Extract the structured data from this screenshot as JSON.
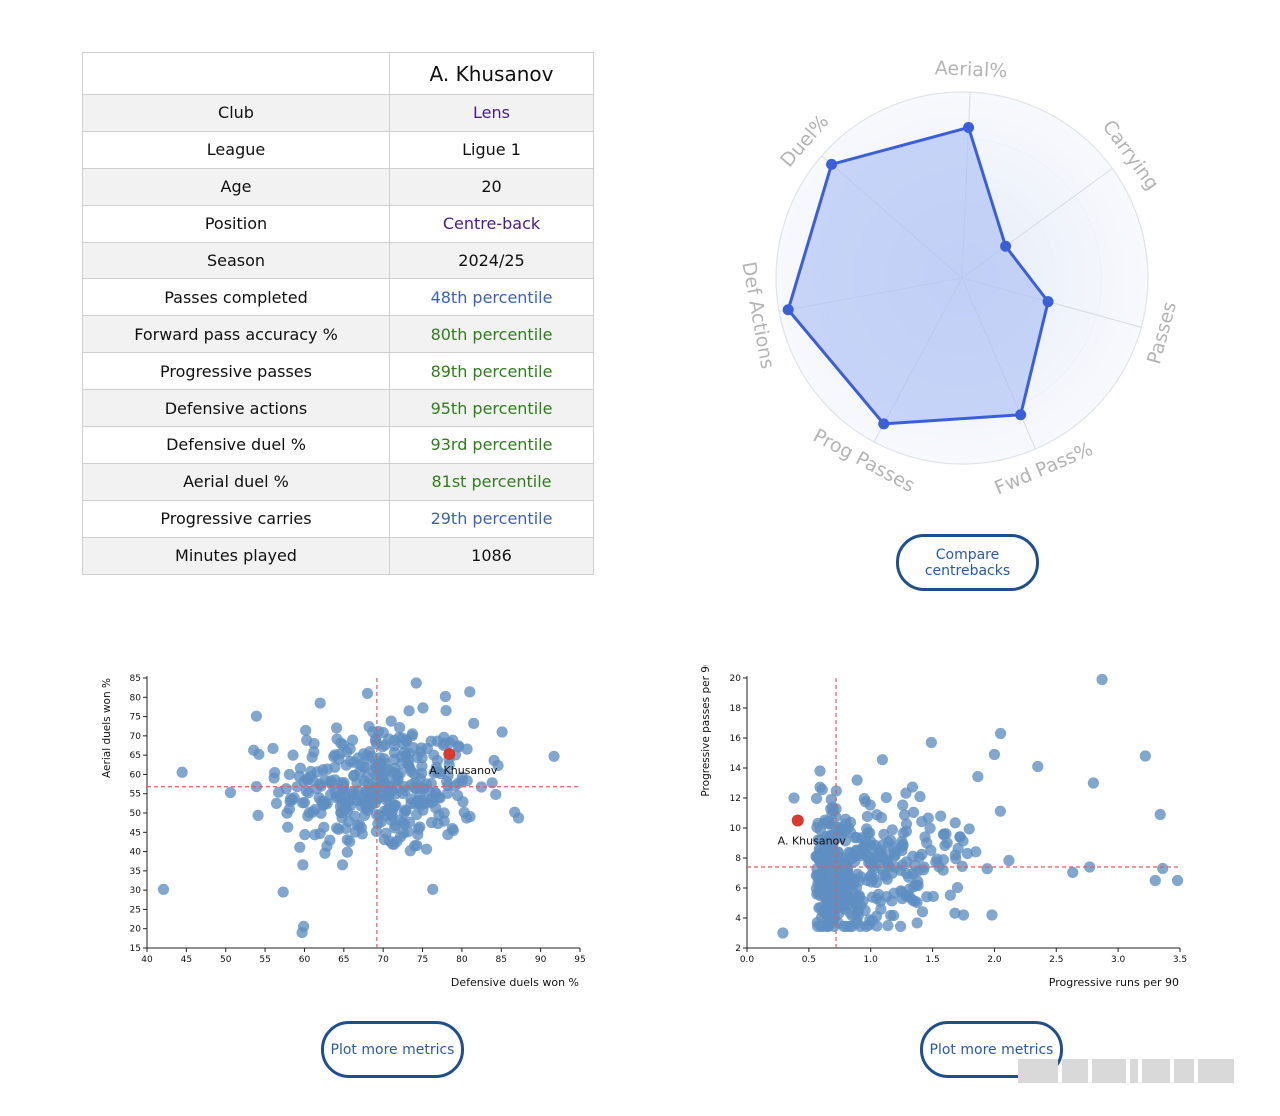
{
  "profile": {
    "player_name": "A. Khusanov",
    "rows": [
      {
        "label": "Club",
        "value": "Lens",
        "color": "purple"
      },
      {
        "label": "League",
        "value": "Ligue 1",
        "color": "black"
      },
      {
        "label": "Age",
        "value": "20",
        "color": "black"
      },
      {
        "label": "Position",
        "value": "Centre-back",
        "color": "purple"
      },
      {
        "label": "Season",
        "value": "2024/25",
        "color": "black"
      },
      {
        "label": "Passes completed",
        "value": "48th percentile",
        "color": "blue"
      },
      {
        "label": "Forward pass accuracy %",
        "value": "80th percentile",
        "color": "green"
      },
      {
        "label": "Progressive passes",
        "value": "89th percentile",
        "color": "green"
      },
      {
        "label": "Defensive actions",
        "value": "95th percentile",
        "color": "green"
      },
      {
        "label": "Defensive duel %",
        "value": "93rd percentile",
        "color": "green"
      },
      {
        "label": "Aerial duel %",
        "value": "81st percentile",
        "color": "green"
      },
      {
        "label": "Progressive carries",
        "value": "29th percentile",
        "color": "blue"
      },
      {
        "label": "Minutes played",
        "value": "1086",
        "color": "black"
      }
    ]
  },
  "buttons": {
    "compare_label_1": "Compare",
    "compare_label_2": "centrebacks",
    "plot_more_1": "Plot more metrics",
    "plot_more_2": "Plot more metrics"
  },
  "colors": {
    "radar_stroke": "#3b5fd9",
    "radar_fill": "#a9bdf5",
    "point": "#5f8ec1",
    "highlight": "#d9392f",
    "reference_line": "#d66060"
  },
  "chart_data": [
    {
      "type": "radar",
      "axes": [
        "Aerial%",
        "Carrying",
        "Passes",
        "Fwd Pass%",
        "Prog Passes",
        "Def Actions",
        "Duel%"
      ],
      "values": [
        81,
        29,
        48,
        80,
        89,
        95,
        93
      ],
      "range": [
        0,
        100
      ]
    },
    {
      "type": "scatter",
      "xlabel": "Defensive duels won %",
      "ylabel": "Aerial duels won %",
      "xlim": [
        40,
        95
      ],
      "ylim": [
        15,
        85
      ],
      "xticks": [
        40,
        45,
        50,
        55,
        60,
        65,
        70,
        75,
        80,
        85,
        90,
        95
      ],
      "yticks": [
        15,
        20,
        25,
        30,
        35,
        40,
        45,
        50,
        55,
        60,
        65,
        70,
        75,
        80,
        85
      ],
      "reference_x": 69.2,
      "reference_y": 56.8,
      "highlight": {
        "label": "A. Khusanov",
        "x": 78.4,
        "y": 65.3
      },
      "outliers": [
        [
          42.1,
          30.2
        ],
        [
          59.7,
          19.0
        ],
        [
          57.3,
          29.5
        ],
        [
          91.7,
          64.7
        ],
        [
          87.2,
          48.7
        ],
        [
          76.3,
          30.2
        ],
        [
          53.9,
          75.1
        ],
        [
          74.2,
          83.7
        ],
        [
          81.0,
          81.4
        ],
        [
          68.0,
          81.0
        ],
        [
          77.9,
          80.2
        ],
        [
          62.0,
          78.5
        ],
        [
          85.1,
          71.0
        ],
        [
          50.6,
          55.3
        ],
        [
          84.6,
          62.3
        ]
      ],
      "cluster": {
        "n": 380,
        "x_mean": 69.5,
        "x_sd": 6.2,
        "y_mean": 56.5,
        "y_sd": 8.6
      }
    },
    {
      "type": "scatter",
      "xlabel": "Progressive runs per 90",
      "ylabel": "Progressive passes per 90",
      "xlim": [
        0.0,
        3.5
      ],
      "ylim": [
        2,
        20
      ],
      "xticks": [
        "0.0",
        "0.5",
        "1.0",
        "1.5",
        "2.0",
        "2.5",
        "3.0",
        "3.5"
      ],
      "yticks": [
        2,
        4,
        6,
        8,
        10,
        12,
        14,
        16,
        18,
        20
      ],
      "reference_x": 0.72,
      "reference_y": 7.4,
      "highlight": {
        "label": "A. Khusanov",
        "x": 0.41,
        "y": 10.5
      },
      "outliers": [
        [
          2.87,
          19.9
        ],
        [
          2.05,
          16.3
        ],
        [
          1.49,
          15.7
        ],
        [
          2.0,
          14.9
        ],
        [
          3.22,
          14.8
        ],
        [
          2.35,
          14.1
        ],
        [
          2.8,
          13.0
        ],
        [
          3.34,
          10.9
        ],
        [
          3.48,
          6.5
        ],
        [
          3.3,
          6.5
        ],
        [
          3.36,
          7.3
        ],
        [
          2.77,
          7.4
        ],
        [
          1.98,
          4.2
        ],
        [
          1.75,
          4.2
        ],
        [
          0.59,
          13.8
        ],
        [
          0.38,
          12.0
        ],
        [
          0.29,
          3.0
        ]
      ],
      "cluster": {
        "n": 420,
        "x_mean": 0.75,
        "x_sd": 0.55,
        "y_mean": 7.1,
        "y_sd": 2.2
      }
    }
  ]
}
